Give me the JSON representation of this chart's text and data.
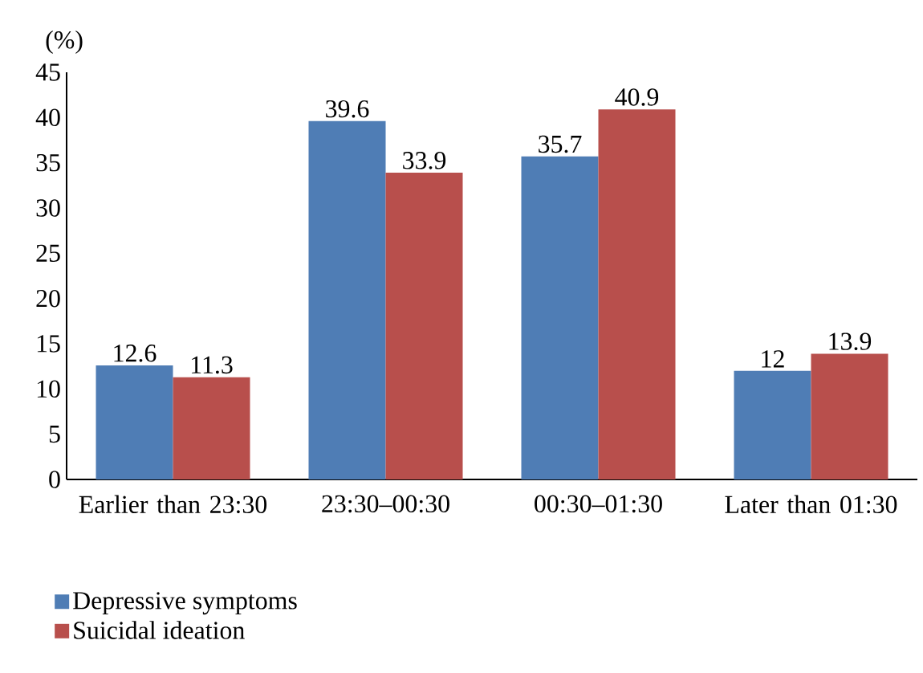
{
  "chart_data": {
    "type": "bar",
    "ylabel": "(%)",
    "categories": [
      "Earlier than 23:30",
      "23:30–00:30",
      "00:30–01:30",
      "Later than 01:30"
    ],
    "series": [
      {
        "name": "Depressive symptoms",
        "color": "#4f7db5",
        "values": [
          12.6,
          39.6,
          35.7,
          12
        ]
      },
      {
        "name": "Suicidal ideation",
        "color": "#b84f4c",
        "values": [
          11.3,
          33.9,
          40.9,
          13.9
        ]
      }
    ],
    "ylim": [
      0,
      45
    ],
    "yticks": [
      0,
      5,
      10,
      15,
      20,
      25,
      30,
      35,
      40,
      45
    ],
    "data_labels": true,
    "legend": "bottom left",
    "grid": false
  }
}
